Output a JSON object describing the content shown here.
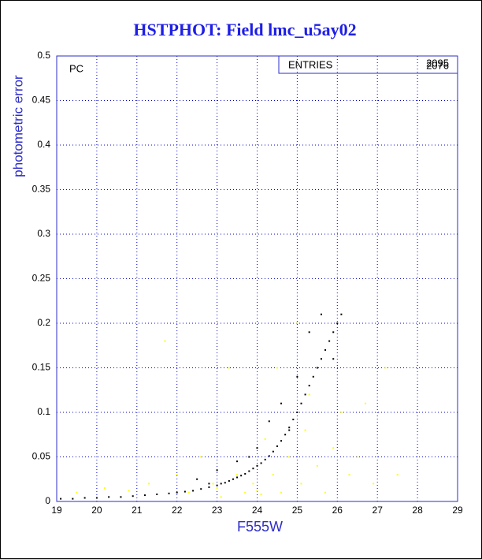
{
  "chart_data": {
    "type": "scatter",
    "title": "HSTPHOT: Field lmc_u5ay02",
    "x_label": "F555W",
    "y_label": "photometric error",
    "annotation": "PC",
    "entries_label": "ENTRIES",
    "entries_values": [
      "2095",
      "2076"
    ],
    "xlim": [
      19,
      29
    ],
    "ylim": [
      0,
      0.5
    ],
    "xticks": [
      19,
      20,
      21,
      22,
      23,
      24,
      25,
      26,
      27,
      28,
      29
    ],
    "yticks": [
      0,
      0.05,
      0.1,
      0.15,
      0.2,
      0.25,
      0.3,
      0.35,
      0.4,
      0.45,
      0.5
    ],
    "grid": true,
    "series": [
      {
        "color": "#ffff00",
        "x": [
          19.5,
          20.2,
          20.8,
          21.3,
          21.7,
          22.0,
          22.3,
          22.6,
          22.9,
          23.1,
          23.3,
          23.5,
          23.7,
          23.9,
          24.1,
          24.2,
          24.4,
          24.6,
          24.8,
          25.0,
          25.1,
          25.3,
          25.5,
          25.7,
          25.9,
          26.1,
          26.3,
          26.5,
          26.7,
          26.9,
          27.2,
          27.5,
          24.5,
          25.2,
          23.0,
          24.0
        ],
        "values": [
          0.01,
          0.015,
          0.012,
          0.02,
          0.18,
          0.03,
          0.01,
          0.05,
          0.02,
          0.005,
          0.15,
          0.03,
          0.01,
          0.02,
          0.008,
          0.07,
          0.03,
          0.01,
          0.05,
          0.2,
          0.02,
          0.12,
          0.04,
          0.01,
          0.06,
          0.1,
          0.03,
          0.05,
          0.11,
          0.02,
          0.15,
          0.03,
          0.15,
          0.08,
          0.015,
          0.012
        ]
      },
      {
        "color": "#000000",
        "x": [
          19.1,
          19.4,
          19.7,
          20.0,
          20.3,
          20.6,
          20.9,
          21.2,
          21.5,
          21.8,
          22.0,
          22.2,
          22.4,
          22.6,
          22.8,
          23.0,
          23.1,
          23.2,
          23.3,
          23.4,
          23.5,
          23.6,
          23.7,
          23.8,
          23.9,
          24.0,
          24.1,
          24.2,
          24.3,
          24.4,
          24.5,
          24.6,
          24.7,
          24.8,
          24.9,
          25.0,
          25.1,
          25.2,
          25.3,
          25.4,
          25.5,
          25.6,
          25.7,
          25.8,
          25.9,
          26.0,
          22.5,
          23.0,
          23.5,
          24.0,
          24.3,
          24.6,
          25.0,
          25.3,
          25.6,
          25.9,
          26.1,
          24.8,
          23.8,
          22.8
        ],
        "values": [
          0.003,
          0.003,
          0.004,
          0.004,
          0.005,
          0.005,
          0.006,
          0.007,
          0.008,
          0.009,
          0.01,
          0.011,
          0.012,
          0.014,
          0.016,
          0.018,
          0.02,
          0.021,
          0.023,
          0.025,
          0.027,
          0.029,
          0.031,
          0.034,
          0.037,
          0.04,
          0.043,
          0.047,
          0.051,
          0.056,
          0.062,
          0.068,
          0.075,
          0.083,
          0.092,
          0.1,
          0.11,
          0.12,
          0.13,
          0.14,
          0.15,
          0.16,
          0.17,
          0.18,
          0.19,
          0.2,
          0.025,
          0.035,
          0.045,
          0.06,
          0.09,
          0.11,
          0.14,
          0.19,
          0.21,
          0.16,
          0.21,
          0.08,
          0.05,
          0.02
        ]
      }
    ]
  }
}
